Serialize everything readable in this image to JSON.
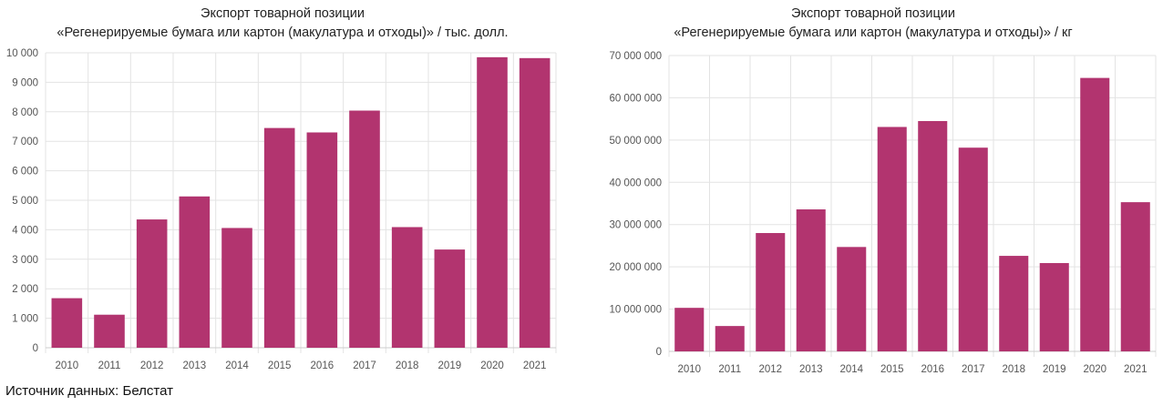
{
  "colors": {
    "bar": "#b2346f",
    "grid": "#e3e3e3",
    "axis": "#cccccc",
    "text": "#555555"
  },
  "chart_data": [
    {
      "type": "bar",
      "title": "Экспорт товарной позиции",
      "subtitle": "«Регенерируемые бумага или картон (макулатура и отходы)» / тыс. долл.",
      "categories": [
        "2010",
        "2011",
        "2012",
        "2013",
        "2014",
        "2015",
        "2016",
        "2017",
        "2018",
        "2019",
        "2020",
        "2021"
      ],
      "values": [
        1680,
        1120,
        4350,
        5130,
        4060,
        7450,
        7300,
        8040,
        4090,
        3330,
        9850,
        9820
      ],
      "ylim": [
        0,
        10000
      ],
      "yticks": [
        0,
        1000,
        2000,
        3000,
        4000,
        5000,
        6000,
        7000,
        8000,
        9000,
        10000
      ],
      "ytick_labels": [
        "0",
        "1 000",
        "2 000",
        "3 000",
        "4 000",
        "5 000",
        "6 000",
        "7 000",
        "8 000",
        "9 000",
        "10 000"
      ],
      "grid": true
    },
    {
      "type": "bar",
      "title": "Экспорт товарной позиции",
      "subtitle": "«Регенерируемые бумага или картон (макулатура и отходы)» / кг",
      "categories": [
        "2010",
        "2011",
        "2012",
        "2013",
        "2014",
        "2015",
        "2016",
        "2017",
        "2018",
        "2019",
        "2020",
        "2021"
      ],
      "values": [
        10300000,
        6000000,
        28000000,
        33600000,
        24700000,
        53100000,
        54500000,
        48200000,
        22600000,
        20900000,
        64700000,
        35300000
      ],
      "ylim": [
        0,
        70000000
      ],
      "yticks": [
        0,
        10000000,
        20000000,
        30000000,
        40000000,
        50000000,
        60000000,
        70000000
      ],
      "ytick_labels": [
        "0",
        "10 000 000",
        "20 000 000",
        "30 000 000",
        "40 000 000",
        "50 000 000",
        "60 000 000",
        "70 000 000"
      ],
      "grid": true
    }
  ],
  "source": "Источник данных: Белстат"
}
